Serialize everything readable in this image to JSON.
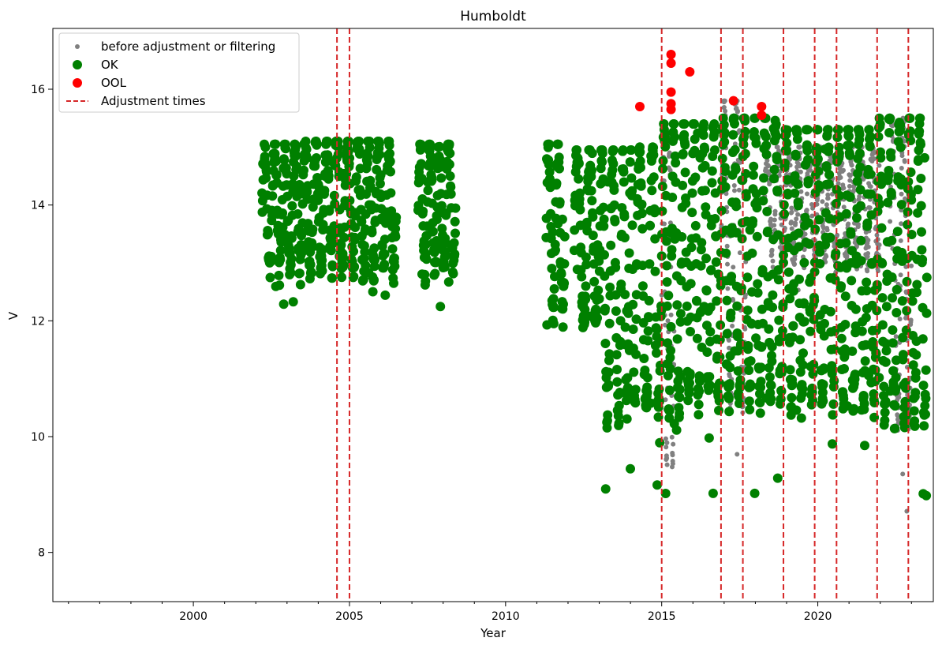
{
  "chart_data": {
    "type": "scatter",
    "title": "Humboldt",
    "xlabel": "Year",
    "ylabel": "V",
    "xlim": [
      1995.5,
      2023.7
    ],
    "ylim": [
      7.15,
      17.05
    ],
    "x_ticks": [
      2000,
      2005,
      2010,
      2015,
      2020
    ],
    "x_tick_labels": [
      "2000",
      "2005",
      "2010",
      "2015",
      "2020"
    ],
    "y_ticks": [
      8,
      10,
      12,
      14,
      16
    ],
    "y_tick_labels": [
      "8",
      "10",
      "12",
      "14",
      "16"
    ],
    "grid": false,
    "legend": {
      "placement": "top-left",
      "entries": [
        {
          "label": "before adjustment or filtering",
          "kind": "marker-small",
          "color": "#808080"
        },
        {
          "label": "OK",
          "kind": "marker",
          "color": "#008000"
        },
        {
          "label": "OOL",
          "kind": "marker",
          "color": "#ff0000"
        },
        {
          "label": "Adjustment times",
          "kind": "dashed-line",
          "color": "#d62728"
        }
      ]
    },
    "adjustment_times": [
      2004.6,
      2005.0,
      2015.0,
      2016.9,
      2017.6,
      2018.9,
      2019.9,
      2020.6,
      2021.9,
      2022.9
    ],
    "ok_segments": [
      {
        "x": [
          2002.2,
          2003.5
        ],
        "range": [
          12.15,
          15.05
        ]
      },
      {
        "x": [
          2003.5,
          2005.2
        ],
        "range": [
          12.15,
          15.1
        ]
      },
      {
        "x": [
          2005.2,
          2006.5
        ],
        "range": [
          12.15,
          15.1
        ]
      },
      {
        "x": [
          2007.2,
          2008.4
        ],
        "range": [
          12.2,
          15.05
        ]
      },
      {
        "x": [
          2011.3,
          2011.9
        ],
        "range": [
          11.1,
          15.05
        ]
      },
      {
        "x": [
          2012.2,
          2013.0
        ],
        "range": [
          11.0,
          14.95
        ]
      },
      {
        "x": [
          2013.0,
          2013.7
        ],
        "range": [
          8.8,
          14.95
        ]
      },
      {
        "x": [
          2013.7,
          2014.2
        ],
        "range": [
          9.0,
          14.95
        ]
      },
      {
        "x": [
          2014.2,
          2015.0
        ],
        "range": [
          9.0,
          15.0
        ]
      },
      {
        "x": [
          2015.0,
          2016.9
        ],
        "range": [
          9.0,
          15.4
        ]
      },
      {
        "x": [
          2016.9,
          2018.9
        ],
        "range": [
          9.0,
          15.5
        ]
      },
      {
        "x": [
          2018.9,
          2021.9
        ],
        "range": [
          9.0,
          15.3
        ]
      },
      {
        "x": [
          2021.9,
          2023.5
        ],
        "range": [
          8.55,
          15.5
        ]
      }
    ],
    "gray_segments": [
      {
        "x": [
          2015.0,
          2015.4
        ],
        "range": [
          7.6,
          15.2
        ]
      },
      {
        "x": [
          2016.9,
          2017.7
        ],
        "range": [
          9.0,
          15.8
        ]
      },
      {
        "x": [
          2018.3,
          2022.0
        ],
        "range": [
          12.5,
          15.0
        ]
      },
      {
        "x": [
          2022.3,
          2023.0
        ],
        "range": [
          8.55,
          15.5
        ]
      }
    ],
    "ool_points": [
      {
        "x": 2014.3,
        "y": 15.7
      },
      {
        "x": 2015.3,
        "y": 16.6
      },
      {
        "x": 2015.3,
        "y": 16.45
      },
      {
        "x": 2015.3,
        "y": 15.95
      },
      {
        "x": 2015.3,
        "y": 15.75
      },
      {
        "x": 2015.3,
        "y": 15.65
      },
      {
        "x": 2015.9,
        "y": 16.3
      },
      {
        "x": 2017.3,
        "y": 15.8
      },
      {
        "x": 2018.2,
        "y": 15.7
      },
      {
        "x": 2018.2,
        "y": 15.55
      }
    ]
  }
}
